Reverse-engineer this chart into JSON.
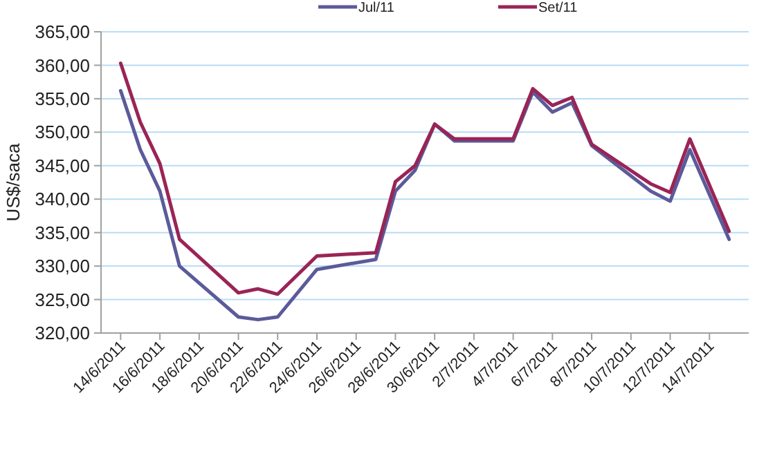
{
  "chart_data": {
    "type": "line",
    "ylabel": "US$/saca",
    "x": [
      "2011-06-14",
      "2011-06-15",
      "2011-06-16",
      "2011-06-17",
      "2011-06-20",
      "2011-06-21",
      "2011-06-22",
      "2011-06-24",
      "2011-06-27",
      "2011-06-28",
      "2011-06-29",
      "2011-06-30",
      "2011-07-01",
      "2011-07-04",
      "2011-07-05",
      "2011-07-06",
      "2011-07-07",
      "2011-07-08",
      "2011-07-11",
      "2011-07-12",
      "2011-07-13",
      "2011-07-15"
    ],
    "series": [
      {
        "name": "Jul/11",
        "color": "#5b5a9a",
        "values": [
          356.2,
          347.4,
          341.2,
          330,
          322.4,
          322,
          322.4,
          329.5,
          331,
          341.2,
          344.3,
          351.2,
          348.7,
          348.7,
          356,
          353,
          354.4,
          348,
          341.2,
          339.7,
          347.4,
          334
        ]
      },
      {
        "name": "Set/11",
        "color": "#9a2456",
        "values": [
          360.3,
          351.5,
          345.3,
          334,
          326,
          326.6,
          325.8,
          331.5,
          332,
          342.6,
          345,
          351.2,
          349,
          349,
          356.5,
          354,
          355.2,
          348.2,
          342.3,
          341,
          349,
          335.2
        ]
      }
    ],
    "xlim": [
      "2011-06-13",
      "2011-07-16"
    ],
    "xticks": [
      {
        "value": "2011-06-14",
        "label": "14/6/2011"
      },
      {
        "value": "2011-06-16",
        "label": "16/6/2011"
      },
      {
        "value": "2011-06-18",
        "label": "18/6/2011"
      },
      {
        "value": "2011-06-20",
        "label": "20/6/2011"
      },
      {
        "value": "2011-06-22",
        "label": "22/6/2011"
      },
      {
        "value": "2011-06-24",
        "label": "24/6/2011"
      },
      {
        "value": "2011-06-26",
        "label": "26/6/2011"
      },
      {
        "value": "2011-06-28",
        "label": "28/6/2011"
      },
      {
        "value": "2011-06-30",
        "label": "30/6/2011"
      },
      {
        "value": "2011-07-02",
        "label": "2/7/2011"
      },
      {
        "value": "2011-07-04",
        "label": "4/7/2011"
      },
      {
        "value": "2011-07-06",
        "label": "6/7/2011"
      },
      {
        "value": "2011-07-08",
        "label": "8/7/2011"
      },
      {
        "value": "2011-07-10",
        "label": "10/7/2011"
      },
      {
        "value": "2011-07-12",
        "label": "12/7/2011"
      },
      {
        "value": "2011-07-14",
        "label": "14/7/2011"
      }
    ],
    "ylim": [
      320,
      365
    ],
    "yticks": [
      {
        "value": 320,
        "label": "320,00"
      },
      {
        "value": 325,
        "label": "325,00"
      },
      {
        "value": 330,
        "label": "330,00"
      },
      {
        "value": 335,
        "label": "335,00"
      },
      {
        "value": 340,
        "label": "340,00"
      },
      {
        "value": 345,
        "label": "345,00"
      },
      {
        "value": 350,
        "label": "350,00"
      },
      {
        "value": 355,
        "label": "355,00"
      },
      {
        "value": 360,
        "label": "360,00"
      },
      {
        "value": 365,
        "label": "365,00"
      }
    ],
    "grid": "y",
    "legend": "top",
    "marker": "none",
    "line_style": "solid"
  }
}
